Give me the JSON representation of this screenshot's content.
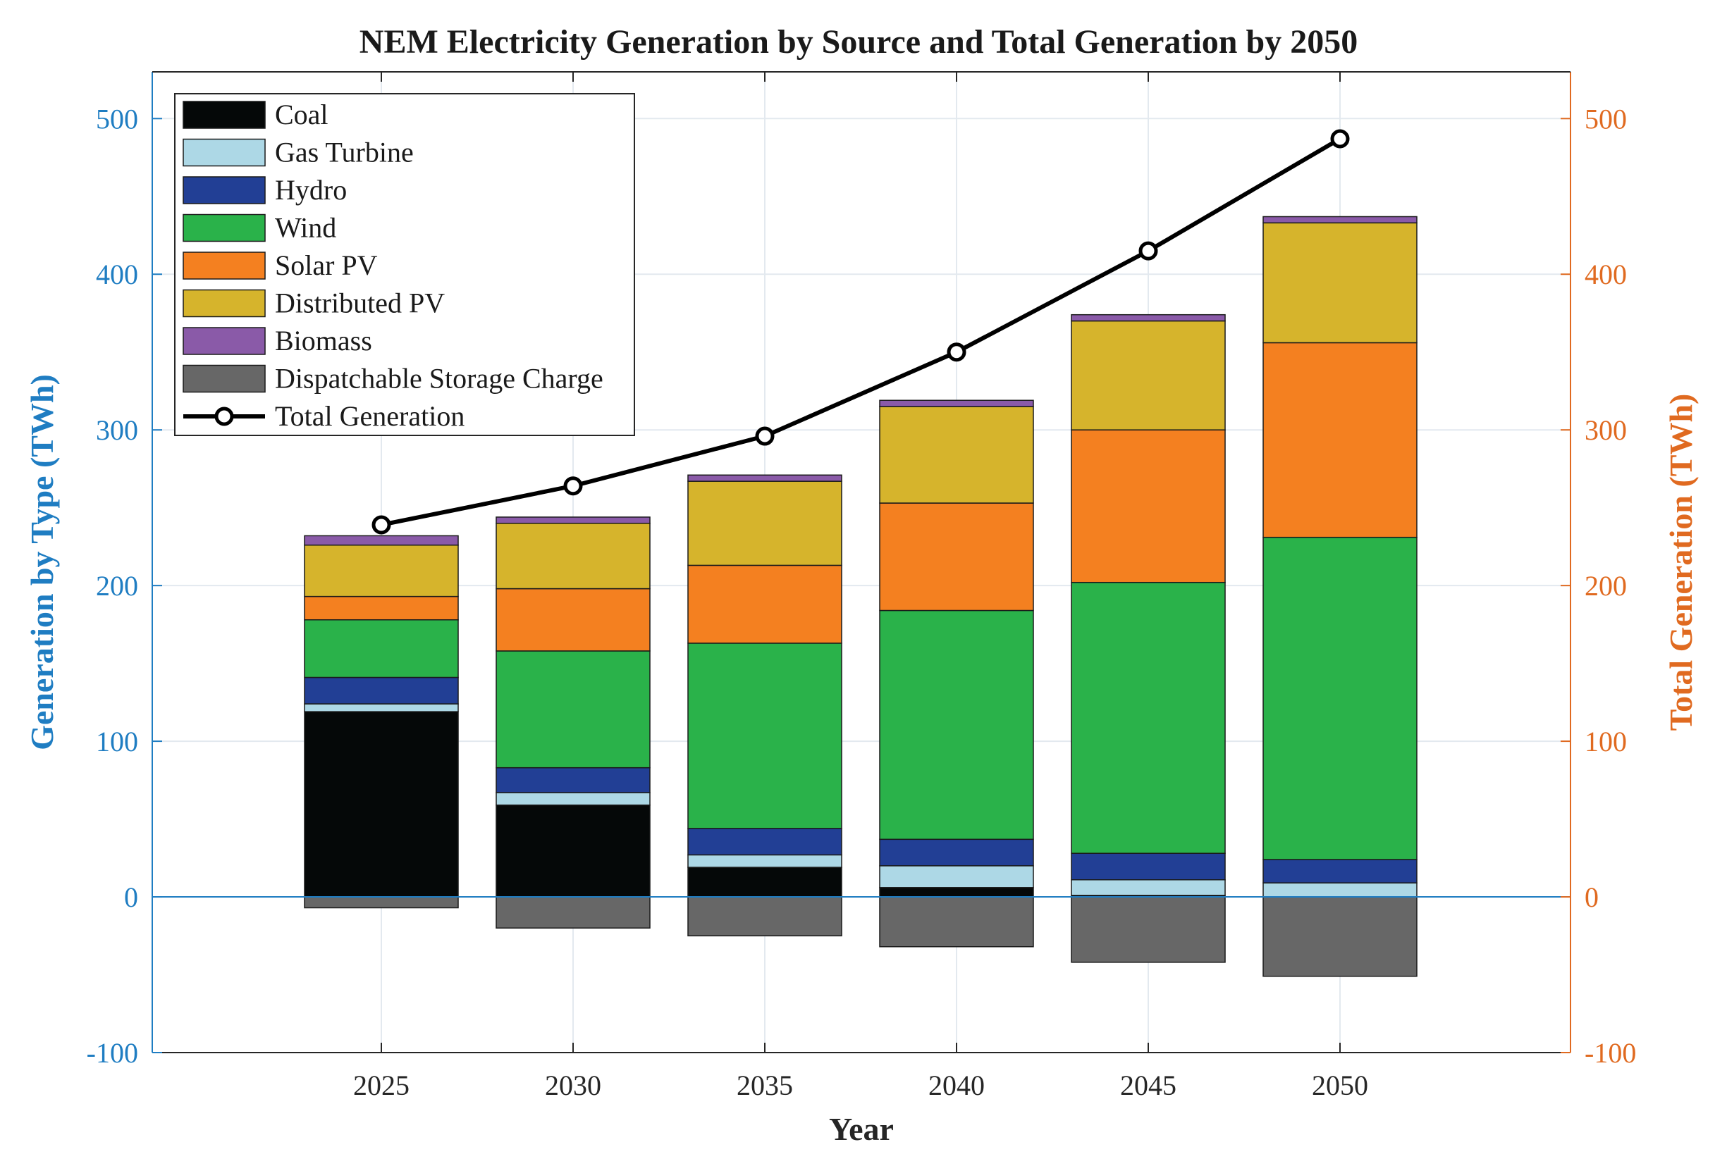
{
  "chart_data": {
    "type": "bar",
    "stacked": true,
    "title": "NEM Electricity Generation by Source and Total Generation by 2050",
    "xlabel": "Year",
    "ylabel_left": "Generation by Type (TWh)",
    "ylabel_right": "Total Generation (TWh)",
    "categories": [
      "2025",
      "2030",
      "2035",
      "2040",
      "2045",
      "2050"
    ],
    "ylim": [
      -100,
      530
    ],
    "yticks": [
      -100,
      0,
      100,
      200,
      300,
      400,
      500
    ],
    "ytick_labels": [
      "-100",
      "0",
      "100",
      "200",
      "300",
      "400",
      "500"
    ],
    "grid": true,
    "legend_position": "top-left",
    "series": [
      {
        "name": "Coal",
        "color": "#050808",
        "values": [
          119,
          59,
          19,
          6,
          1,
          0
        ]
      },
      {
        "name": "Gas Turbine",
        "color": "#add8e6",
        "values": [
          5,
          8,
          8,
          14,
          10,
          9
        ]
      },
      {
        "name": "Hydro",
        "color": "#223f95",
        "values": [
          17,
          16,
          17,
          17,
          17,
          15
        ]
      },
      {
        "name": "Wind",
        "color": "#2ab24a",
        "values": [
          37,
          75,
          119,
          147,
          174,
          207
        ]
      },
      {
        "name": "Solar PV",
        "color": "#f48020",
        "values": [
          15,
          40,
          50,
          69,
          98,
          125
        ]
      },
      {
        "name": "Distributed PV",
        "color": "#d6b42c",
        "values": [
          33,
          42,
          54,
          62,
          70,
          77
        ]
      },
      {
        "name": "Biomass",
        "color": "#8a5aa8",
        "values": [
          6,
          4,
          4,
          4,
          4,
          4
        ]
      },
      {
        "name": "Dispatchable Storage Charge",
        "color": "#676767",
        "values": [
          -7,
          -20,
          -25,
          -32,
          -42,
          -51
        ]
      }
    ],
    "line_series": {
      "name": "Total Generation",
      "color": "#000000",
      "axis": "right",
      "values": [
        239,
        264,
        296,
        350,
        415,
        487
      ]
    },
    "colors": {
      "left_axis": "#1f7dc2",
      "right_axis": "#e06a20",
      "grid": "#e3e9ef",
      "zero_line": "#1f7dc2"
    }
  }
}
